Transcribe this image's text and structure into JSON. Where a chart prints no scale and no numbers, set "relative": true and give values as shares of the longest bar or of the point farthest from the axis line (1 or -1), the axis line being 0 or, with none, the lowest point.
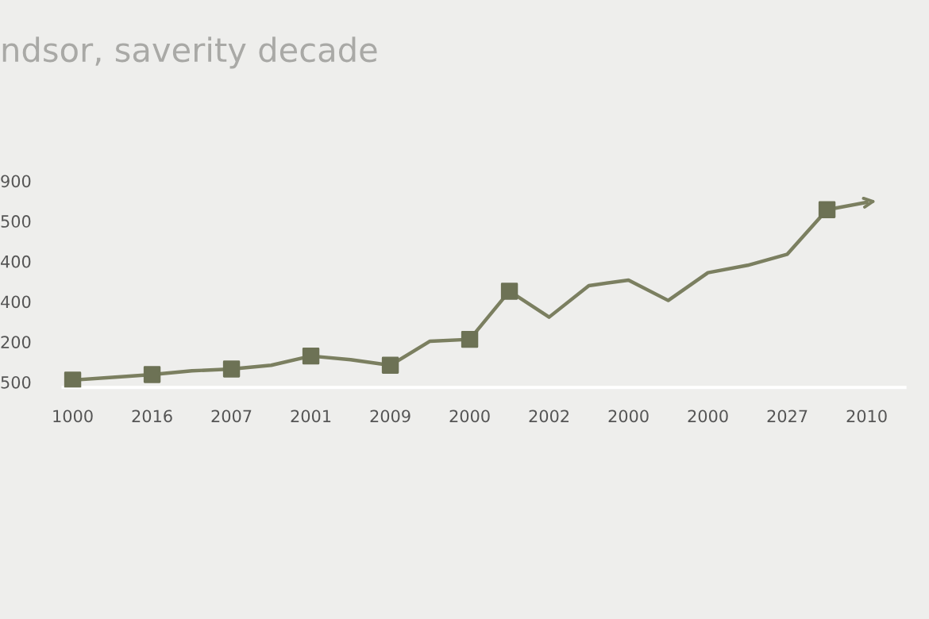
{
  "chart_data": {
    "type": "line",
    "title": "ndsor, saverity decade",
    "relative": true,
    "categories": [
      "1000",
      null,
      "2016",
      null,
      "2007",
      null,
      "2001",
      null,
      "2009",
      null,
      "2000",
      null,
      "2002",
      null,
      "2000",
      null,
      "2000",
      null,
      "2027",
      null,
      "2010"
    ],
    "series": [
      {
        "type": "line",
        "color": "#7b7f60",
        "marker": "none",
        "values": [
          0.04,
          0.055,
          0.07,
          0.09,
          0.1,
          0.12,
          0.17,
          0.15,
          0.12,
          0.25,
          0.26,
          0.52,
          0.38,
          0.55,
          0.58,
          0.47,
          0.62,
          0.66,
          0.72,
          0.96,
          1.0
        ]
      },
      {
        "type": "scatter",
        "color": "#6d7255",
        "marker": "square",
        "values": [
          0.04,
          null,
          0.07,
          null,
          0.1,
          null,
          0.17,
          null,
          0.12,
          null,
          0.26,
          0.52,
          null,
          null,
          null,
          null,
          null,
          null,
          null,
          0.96,
          null
        ]
      }
    ],
    "annotations": [
      "900",
      "500",
      "400",
      "400",
      "200",
      "500"
    ],
    "grid": false,
    "legend": false
  }
}
